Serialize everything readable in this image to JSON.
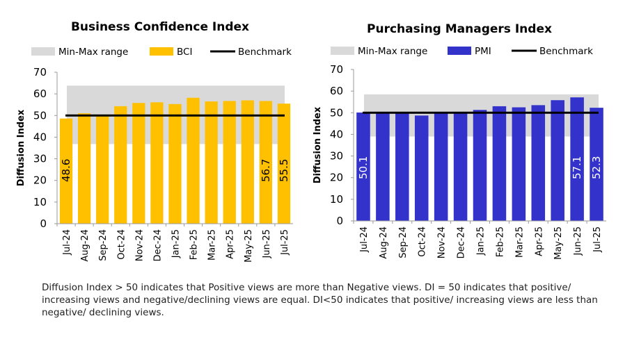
{
  "chart_data": [
    {
      "type": "bar",
      "title": "Business Confidence Index",
      "ylabel": "Diffusion Index",
      "ylim": [
        0,
        70
      ],
      "yticks": [
        "0",
        "10",
        "20",
        "30",
        "40",
        "50",
        "60",
        "70"
      ],
      "categories": [
        "Jul-24",
        "Aug-24",
        "Sep-24",
        "Oct-24",
        "Nov-24",
        "Dec-24",
        "Jan-25",
        "Feb-25",
        "Mar-25",
        "Apr-25",
        "May-25",
        "Jun-25",
        "Jul-25"
      ],
      "series": [
        {
          "name": "BCI",
          "values": [
            48.6,
            51.0,
            50.0,
            54.3,
            55.8,
            56.1,
            55.3,
            58.2,
            56.5,
            56.7,
            57.0,
            56.7,
            55.5
          ],
          "color": "#FFC000"
        }
      ],
      "range": {
        "name": "Min-Max range",
        "min": 36.8,
        "max": 63.8,
        "color": "#D9D9D9"
      },
      "benchmark": {
        "name": "Benchmark",
        "value": 50,
        "color": "#000000"
      },
      "data_labels": [
        {
          "index": 0,
          "text": "48.6"
        },
        {
          "index": 11,
          "text": "56.7"
        },
        {
          "index": 12,
          "text": "55.5"
        }
      ],
      "label_color": "#000000",
      "legend_position": "top"
    },
    {
      "type": "bar",
      "title": "Purchasing Managers Index",
      "ylabel": "Diffusion Index",
      "ylim": [
        0,
        70
      ],
      "yticks": [
        "0",
        "10",
        "20",
        "30",
        "40",
        "50",
        "60",
        "70"
      ],
      "categories": [
        "Jul-24",
        "Aug-24",
        "Sep-24",
        "Oct-24",
        "Nov-24",
        "Dec-24",
        "Jan-25",
        "Feb-25",
        "Mar-25",
        "Apr-25",
        "May-25",
        "Jun-25",
        "Jul-25"
      ],
      "series": [
        {
          "name": "PMI",
          "values": [
            50.1,
            50.2,
            50.0,
            48.7,
            50.0,
            50.0,
            51.3,
            53.0,
            52.5,
            53.5,
            55.8,
            57.1,
            52.3
          ],
          "color": "#3333CC"
        }
      ],
      "range": {
        "name": "Min-Max range",
        "min": 39.0,
        "max": 58.5,
        "color": "#D9D9D9"
      },
      "benchmark": {
        "name": "Benchmark",
        "value": 50,
        "color": "#000000"
      },
      "data_labels": [
        {
          "index": 0,
          "text": "50.1"
        },
        {
          "index": 11,
          "text": "57.1"
        },
        {
          "index": 12,
          "text": "52.3"
        }
      ],
      "label_color": "#FFFFFF",
      "legend_position": "top"
    }
  ],
  "footnote": "Diffusion Index > 50 indicates that Positive views are more than Negative views. DI = 50 indicates that positive/ increasing views and negative/declining views are equal. DI<50 indicates that positive/ increasing views are less than negative/ declining views."
}
